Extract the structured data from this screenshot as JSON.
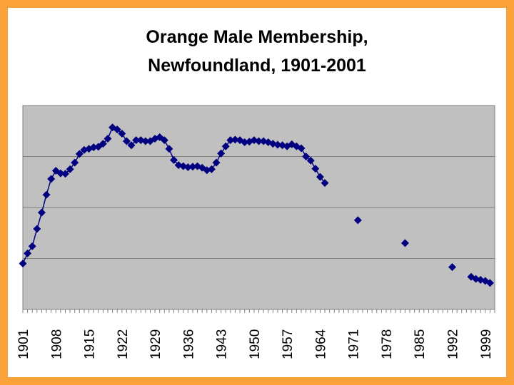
{
  "slide": {
    "border_color": "#fba23a"
  },
  "chart_data": {
    "type": "scatter",
    "title_lines": [
      "Orange Male Membership,",
      "Newfoundland, 1901-2001"
    ],
    "xlabel": "",
    "ylabel": "",
    "xlim": [
      1901,
      2001
    ],
    "ylim": [
      0,
      4
    ],
    "x_ticks": [
      1901,
      1908,
      1915,
      1922,
      1929,
      1936,
      1943,
      1950,
      1957,
      1964,
      1971,
      1978,
      1985,
      1992,
      1999
    ],
    "grid": true,
    "legend": "none",
    "plot_background": "#c0c0c0",
    "marker_color": "#000080",
    "marker": "diamond",
    "connected_through_year": 1966,
    "points": [
      [
        1901,
        0.9
      ],
      [
        1902,
        1.1
      ],
      [
        1903,
        1.24
      ],
      [
        1904,
        1.58
      ],
      [
        1905,
        1.9
      ],
      [
        1906,
        2.25
      ],
      [
        1907,
        2.56
      ],
      [
        1908,
        2.72
      ],
      [
        1909,
        2.67
      ],
      [
        1910,
        2.66
      ],
      [
        1911,
        2.75
      ],
      [
        1912,
        2.88
      ],
      [
        1913,
        3.05
      ],
      [
        1914,
        3.13
      ],
      [
        1915,
        3.15
      ],
      [
        1916,
        3.18
      ],
      [
        1917,
        3.19
      ],
      [
        1918,
        3.25
      ],
      [
        1919,
        3.35
      ],
      [
        1920,
        3.57
      ],
      [
        1921,
        3.53
      ],
      [
        1922,
        3.45
      ],
      [
        1923,
        3.3
      ],
      [
        1924,
        3.22
      ],
      [
        1925,
        3.32
      ],
      [
        1926,
        3.32
      ],
      [
        1927,
        3.3
      ],
      [
        1928,
        3.3
      ],
      [
        1929,
        3.35
      ],
      [
        1930,
        3.38
      ],
      [
        1931,
        3.32
      ],
      [
        1932,
        3.15
      ],
      [
        1933,
        2.93
      ],
      [
        1934,
        2.83
      ],
      [
        1935,
        2.81
      ],
      [
        1936,
        2.79
      ],
      [
        1937,
        2.8
      ],
      [
        1938,
        2.81
      ],
      [
        1939,
        2.78
      ],
      [
        1940,
        2.73
      ],
      [
        1941,
        2.75
      ],
      [
        1942,
        2.88
      ],
      [
        1943,
        3.06
      ],
      [
        1944,
        3.2
      ],
      [
        1945,
        3.32
      ],
      [
        1946,
        3.33
      ],
      [
        1947,
        3.32
      ],
      [
        1948,
        3.28
      ],
      [
        1949,
        3.29
      ],
      [
        1950,
        3.32
      ],
      [
        1951,
        3.3
      ],
      [
        1952,
        3.3
      ],
      [
        1953,
        3.28
      ],
      [
        1954,
        3.25
      ],
      [
        1955,
        3.23
      ],
      [
        1956,
        3.22
      ],
      [
        1957,
        3.2
      ],
      [
        1958,
        3.24
      ],
      [
        1959,
        3.2
      ],
      [
        1960,
        3.16
      ],
      [
        1961,
        3.0
      ],
      [
        1962,
        2.92
      ],
      [
        1963,
        2.76
      ],
      [
        1964,
        2.6
      ],
      [
        1965,
        2.48
      ],
      [
        1972,
        1.75
      ],
      [
        1982,
        1.3
      ],
      [
        1992,
        0.83
      ],
      [
        1996,
        0.64
      ],
      [
        1997,
        0.6
      ],
      [
        1998,
        0.58
      ],
      [
        1999,
        0.56
      ],
      [
        2000,
        0.52
      ]
    ]
  }
}
